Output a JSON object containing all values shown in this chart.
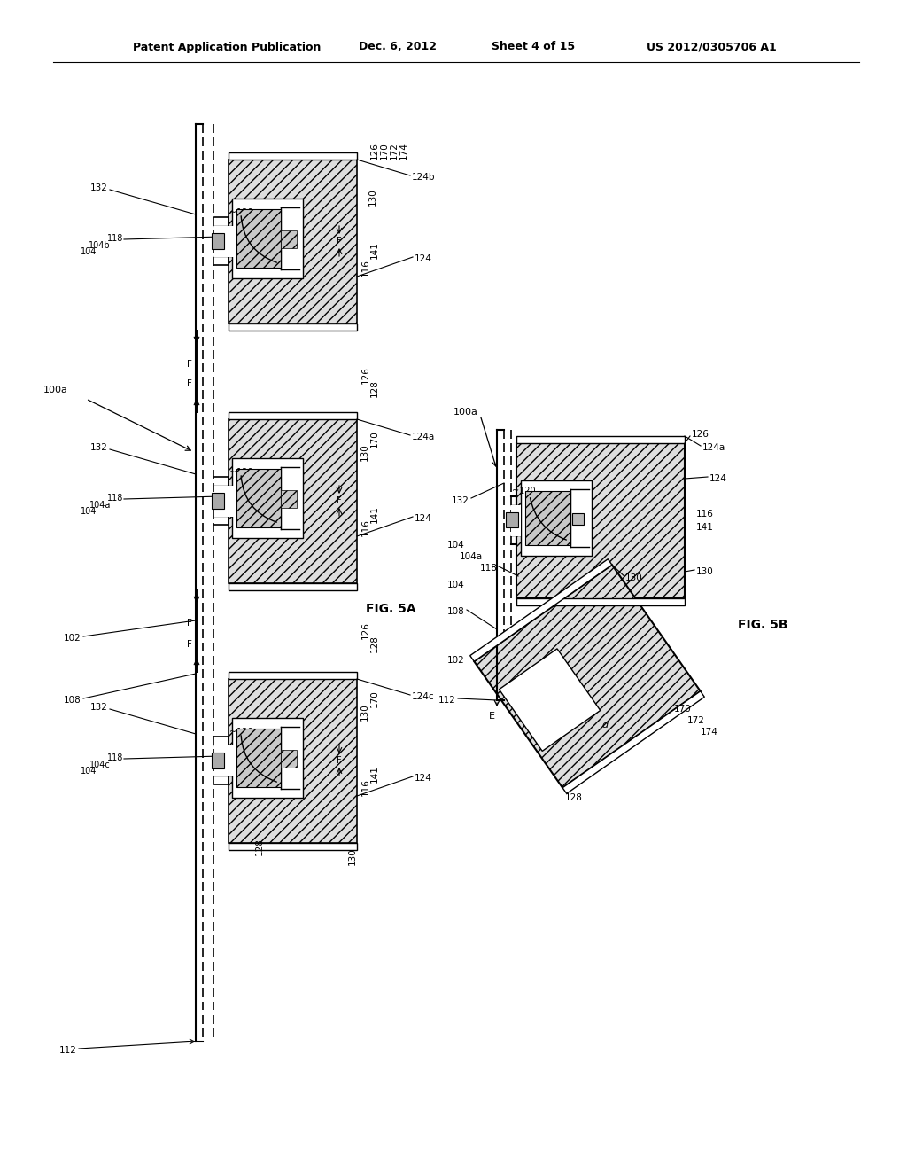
{
  "bg_color": "#ffffff",
  "header_text": "Patent Application Publication",
  "header_date": "Dec. 6, 2012",
  "header_sheet": "Sheet 4 of 15",
  "header_patent": "US 2012/0305706 A1",
  "fig5a_label": "FIG. 5A",
  "fig5b_label": "FIG. 5B"
}
